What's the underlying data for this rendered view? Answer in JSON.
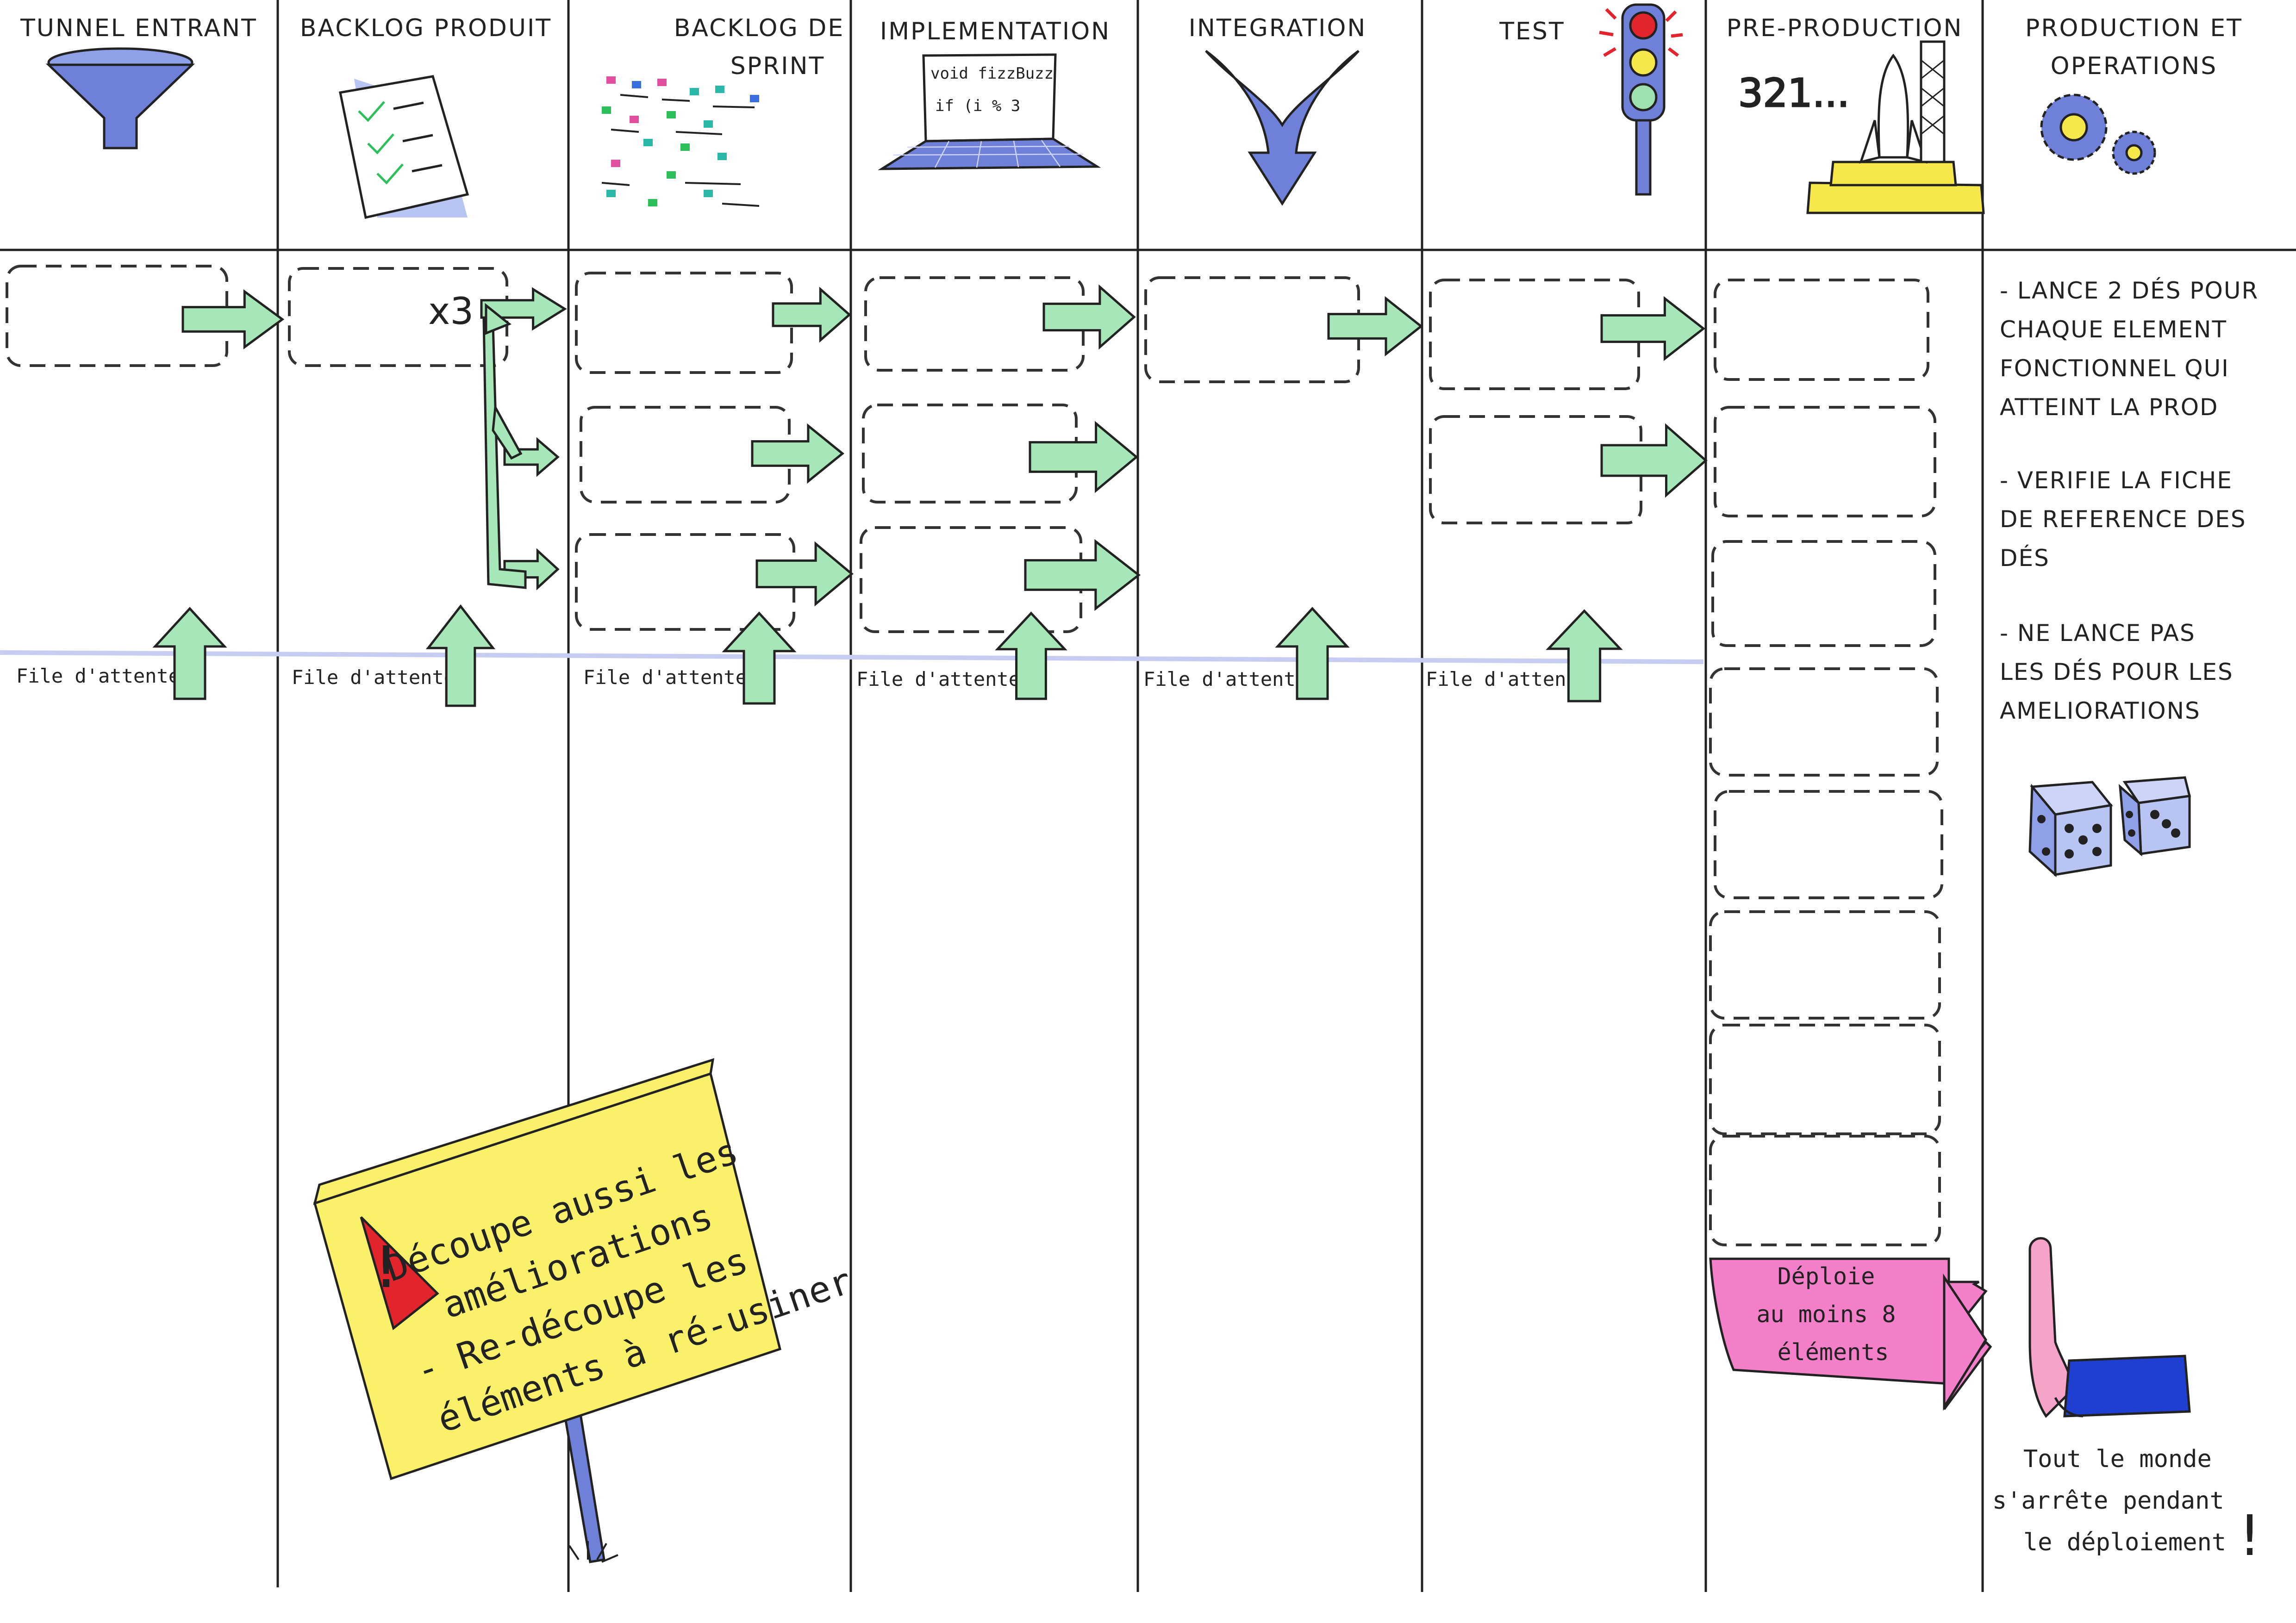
{
  "columns": [
    {
      "id": "tunnel",
      "lines": [
        "TUNNEL ENTRANT"
      ]
    },
    {
      "id": "backlog-produit",
      "lines": [
        "BACKLOG PRODUIT"
      ]
    },
    {
      "id": "backlog-sprint",
      "lines": [
        "BACKLOG DE",
        "SPRINT"
      ]
    },
    {
      "id": "implementation",
      "lines": [
        "IMPLEMENTATION"
      ]
    },
    {
      "id": "integration",
      "lines": [
        "INTEGRATION"
      ]
    },
    {
      "id": "test",
      "lines": [
        "TEST"
      ]
    },
    {
      "id": "pre-production",
      "lines": [
        "PRE-PRODUCTION"
      ]
    },
    {
      "id": "production",
      "lines": [
        "PRODUCTION ET",
        "OPERATIONS"
      ]
    }
  ],
  "queue_label": "File d'attente",
  "multiplier_label": "x3",
  "laptop_code": [
    "void fizzBuzz",
    "if (i % 3"
  ],
  "countdown_text": "321...",
  "rules": [
    [
      "- LANCE 2 DÉS POUR",
      "CHAQUE ELEMENT",
      "FONCTIONNEL QUI",
      "ATTEINT LA PROD"
    ],
    [
      "- VERIFIE LA FICHE",
      "DE REFERENCE DES",
      "DÉS"
    ],
    [
      "- NE LANCE PAS",
      "LES DÉS POUR LES",
      "AMELIORATIONS"
    ]
  ],
  "deploy_label": [
    "Déploie",
    "au moins 8",
    "éléments"
  ],
  "stop_note": [
    "Tout le monde",
    "s'arrête pendant",
    "le déploiement"
  ],
  "stop_mark": "!",
  "sign_lines": [
    "Découpe aussi les",
    "améliorations",
    "- Re-découpe les",
    "éléments à ré-usiner"
  ],
  "sign_warning_mark": "!",
  "colors": {
    "arrow_green": "#a6e6b8",
    "sign_yellow": "#fbf06a",
    "deploy_pink": "#f27fc8",
    "icon_blue": "#6f80d8",
    "queue_line": "#c7cdf2",
    "warning_red": "#e2242c",
    "sleeve_blue": "#1f3fd0"
  }
}
